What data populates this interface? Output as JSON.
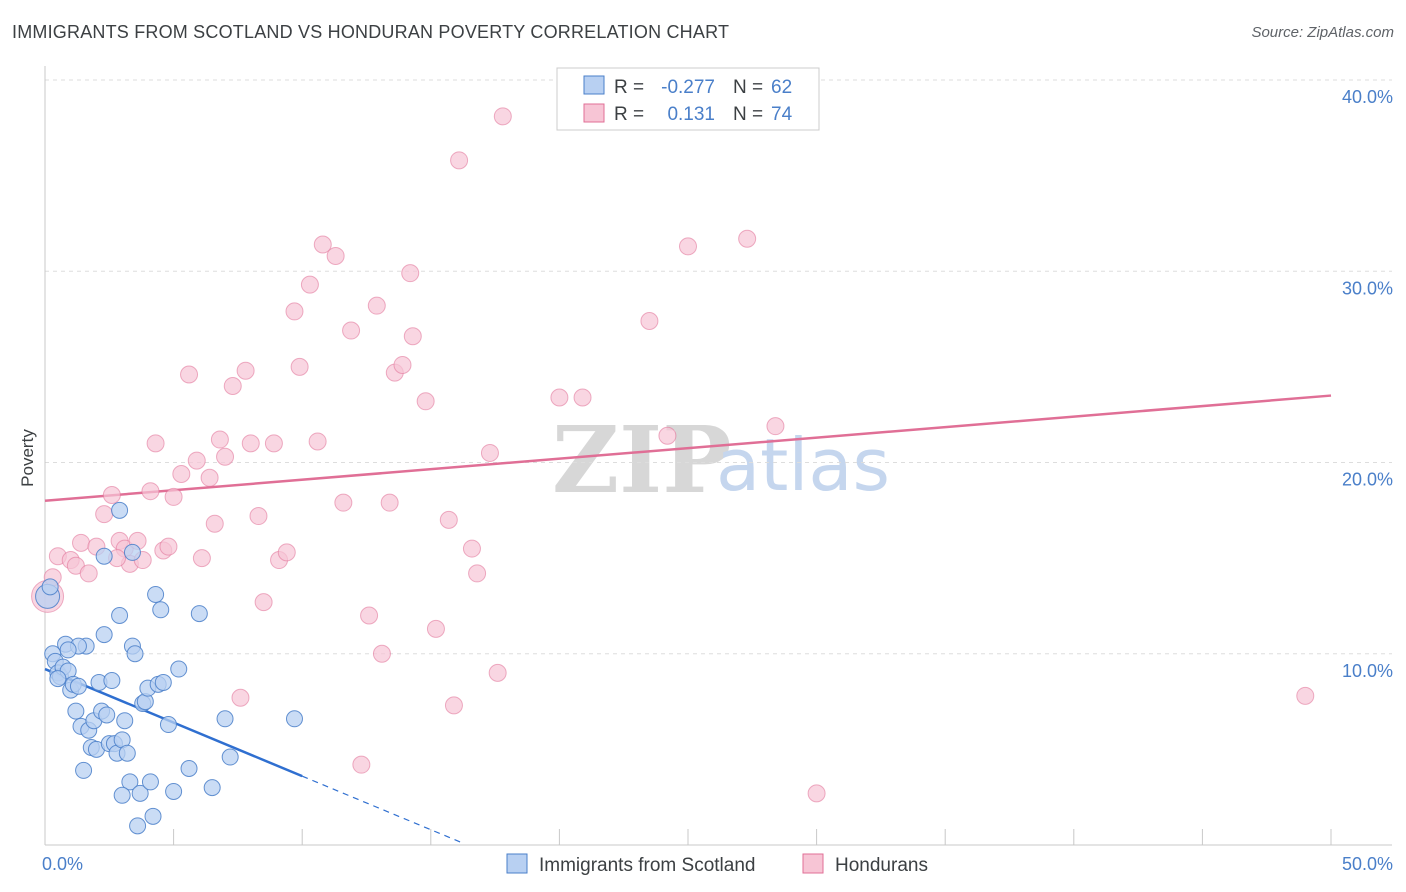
{
  "title": "IMMIGRANTS FROM SCOTLAND VS HONDURAN POVERTY CORRELATION CHART",
  "source": "Source: ZipAtlas.com",
  "watermark": {
    "zip": "ZIP",
    "atlas": "atlas"
  },
  "colors": {
    "blue": "#4a7fc9",
    "blue_fill": "#b8d0f2",
    "blue_line": "#2f6fd0",
    "pink": "#e06f96",
    "pink_fill": "#f7c5d5",
    "grid": "#dddddd"
  },
  "legend": {
    "rows": [
      {
        "r_label": "R =",
        "r_value": "-0.277",
        "n_label": "N =",
        "n_value": "62"
      },
      {
        "r_label": "R =",
        "r_value": "0.131",
        "n_label": "N =",
        "n_value": "74"
      }
    ]
  },
  "bottom_legend": [
    "Immigrants from Scotland",
    "Hondurans"
  ],
  "chart_data": {
    "type": "scatter",
    "ylabel": "Poverty",
    "xlim": [
      0,
      50
    ],
    "ylim": [
      0,
      40
    ],
    "x_tick_labels": [
      "0.0%",
      "50.0%"
    ],
    "y_ticks": [
      10,
      20,
      30,
      40
    ],
    "y_tick_labels": [
      "10.0%",
      "20.0%",
      "30.0%",
      "40.0%"
    ],
    "grid": true,
    "series": [
      {
        "name": "Immigrants from Scotland",
        "trend": {
          "x": [
            0,
            10
          ],
          "y": [
            9.2,
            3.6
          ],
          "dashed_to_x": 16.2
        },
        "points": [
          [
            0.1,
            13.0
          ],
          [
            0.2,
            13.5
          ],
          [
            0.3,
            10.0
          ],
          [
            0.4,
            9.6
          ],
          [
            0.5,
            9.0
          ],
          [
            0.6,
            8.8
          ],
          [
            0.7,
            9.3
          ],
          [
            0.8,
            10.5
          ],
          [
            0.9,
            9.1
          ],
          [
            1.0,
            8.1
          ],
          [
            1.1,
            8.4
          ],
          [
            1.2,
            7.0
          ],
          [
            1.3,
            8.3
          ],
          [
            1.4,
            6.2
          ],
          [
            1.5,
            3.9
          ],
          [
            1.6,
            10.4
          ],
          [
            1.7,
            6.0
          ],
          [
            1.8,
            5.1
          ],
          [
            1.9,
            6.5
          ],
          [
            2.0,
            5.0
          ],
          [
            2.1,
            8.5
          ],
          [
            2.2,
            7.0
          ],
          [
            2.3,
            11.0
          ],
          [
            2.4,
            6.8
          ],
          [
            2.5,
            5.3
          ],
          [
            2.6,
            8.6
          ],
          [
            2.7,
            5.3
          ],
          [
            2.8,
            4.8
          ],
          [
            2.9,
            12.0
          ],
          [
            3.0,
            5.5
          ],
          [
            3.1,
            6.5
          ],
          [
            3.2,
            4.8
          ],
          [
            3.3,
            3.3
          ],
          [
            3.4,
            10.4
          ],
          [
            3.5,
            10.0
          ],
          [
            3.6,
            1.0
          ],
          [
            3.7,
            2.7
          ],
          [
            3.8,
            7.4
          ],
          [
            3.9,
            7.5
          ],
          [
            4.0,
            8.2
          ],
          [
            4.1,
            3.3
          ],
          [
            4.2,
            1.5
          ],
          [
            4.3,
            13.1
          ],
          [
            4.4,
            8.4
          ],
          [
            4.5,
            12.3
          ],
          [
            4.6,
            8.5
          ],
          [
            4.8,
            6.3
          ],
          [
            5.0,
            2.8
          ],
          [
            5.2,
            9.2
          ],
          [
            5.6,
            4.0
          ],
          [
            6.0,
            12.1
          ],
          [
            6.5,
            3.0
          ],
          [
            7.0,
            6.6
          ],
          [
            7.2,
            4.6
          ],
          [
            9.7,
            6.6
          ],
          [
            2.9,
            17.5
          ],
          [
            2.3,
            15.1
          ],
          [
            3.0,
            2.6
          ],
          [
            1.3,
            10.4
          ],
          [
            0.9,
            10.2
          ],
          [
            3.4,
            15.3
          ],
          [
            0.5,
            8.7
          ]
        ]
      },
      {
        "name": "Hondurans",
        "trend": {
          "x": [
            0,
            50
          ],
          "y": [
            18.0,
            23.5
          ]
        },
        "points": [
          [
            0.1,
            13.0
          ],
          [
            0.5,
            15.1
          ],
          [
            1.0,
            14.9
          ],
          [
            1.2,
            14.6
          ],
          [
            1.4,
            15.8
          ],
          [
            1.7,
            14.2
          ],
          [
            2.0,
            15.6
          ],
          [
            2.3,
            17.3
          ],
          [
            2.6,
            18.3
          ],
          [
            2.9,
            15.9
          ],
          [
            3.1,
            15.5
          ],
          [
            3.3,
            14.7
          ],
          [
            3.6,
            15.9
          ],
          [
            3.8,
            14.9
          ],
          [
            4.1,
            18.5
          ],
          [
            4.3,
            21.0
          ],
          [
            4.6,
            15.4
          ],
          [
            4.8,
            15.6
          ],
          [
            5.0,
            18.2
          ],
          [
            5.3,
            19.4
          ],
          [
            5.6,
            24.6
          ],
          [
            5.9,
            20.1
          ],
          [
            6.1,
            15.0
          ],
          [
            6.4,
            19.2
          ],
          [
            6.6,
            16.8
          ],
          [
            6.8,
            21.2
          ],
          [
            7.0,
            20.3
          ],
          [
            7.3,
            24.0
          ],
          [
            7.6,
            7.7
          ],
          [
            7.8,
            24.8
          ],
          [
            8.0,
            21.0
          ],
          [
            8.3,
            17.2
          ],
          [
            8.5,
            12.7
          ],
          [
            8.9,
            21.0
          ],
          [
            9.1,
            14.9
          ],
          [
            9.4,
            15.3
          ],
          [
            9.7,
            27.9
          ],
          [
            9.9,
            25.0
          ],
          [
            10.3,
            29.3
          ],
          [
            10.6,
            21.1
          ],
          [
            10.8,
            31.4
          ],
          [
            11.3,
            30.8
          ],
          [
            11.6,
            17.9
          ],
          [
            11.9,
            26.9
          ],
          [
            12.3,
            4.2
          ],
          [
            12.6,
            12.0
          ],
          [
            12.9,
            28.2
          ],
          [
            13.1,
            10.0
          ],
          [
            13.4,
            17.9
          ],
          [
            13.6,
            24.7
          ],
          [
            13.9,
            25.1
          ],
          [
            14.2,
            29.9
          ],
          [
            14.3,
            26.6
          ],
          [
            14.8,
            23.2
          ],
          [
            15.2,
            11.3
          ],
          [
            15.7,
            17.0
          ],
          [
            15.9,
            7.3
          ],
          [
            16.1,
            35.8
          ],
          [
            16.6,
            15.5
          ],
          [
            16.8,
            14.2
          ],
          [
            17.3,
            20.5
          ],
          [
            17.6,
            9.0
          ],
          [
            17.8,
            38.1
          ],
          [
            20.0,
            23.4
          ],
          [
            20.9,
            23.4
          ],
          [
            23.5,
            27.4
          ],
          [
            24.2,
            21.4
          ],
          [
            25.0,
            31.3
          ],
          [
            27.3,
            31.7
          ],
          [
            28.4,
            21.9
          ],
          [
            30.0,
            2.7
          ],
          [
            49.0,
            7.8
          ],
          [
            0.3,
            14.0
          ],
          [
            2.8,
            15.0
          ]
        ]
      }
    ]
  }
}
